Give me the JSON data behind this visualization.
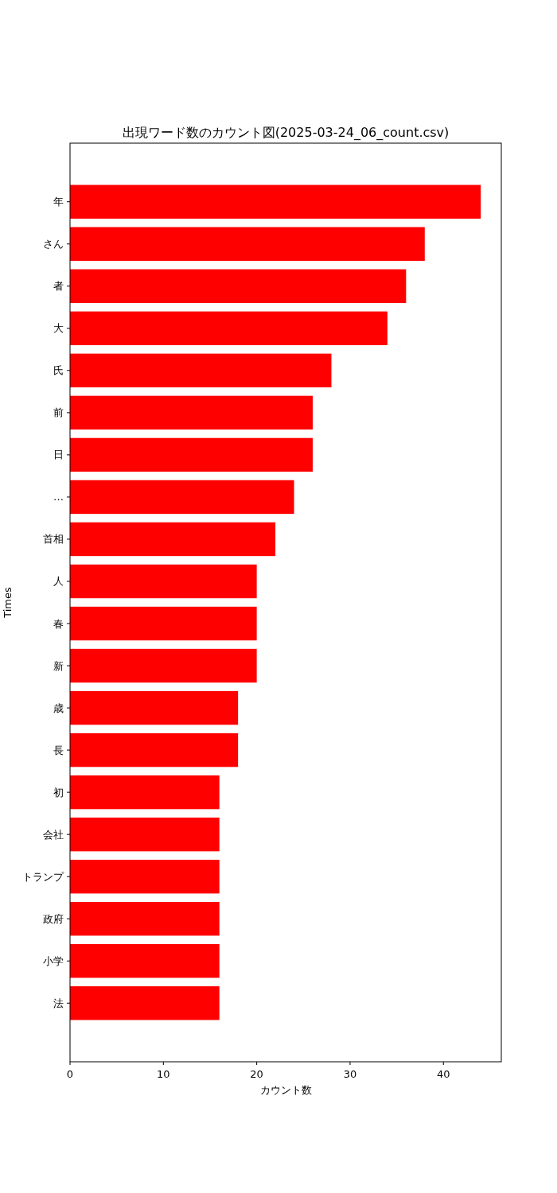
{
  "chart_data": {
    "type": "bar",
    "orientation": "horizontal",
    "title": "出現ワード数のカウント図(2025-03-24_06_count.csv)",
    "xlabel": "カウント数",
    "ylabel": "Times",
    "categories": [
      "年",
      "さん",
      "者",
      "大",
      "氏",
      "前",
      "日",
      "…",
      "首相",
      "人",
      "春",
      "新",
      "歳",
      "長",
      "初",
      "会社",
      "トランプ",
      "政府",
      "小学",
      "法"
    ],
    "values": [
      44,
      38,
      36,
      34,
      28,
      26,
      26,
      24,
      22,
      20,
      20,
      20,
      18,
      18,
      16,
      16,
      16,
      16,
      16,
      16
    ],
    "color": "#ff0000",
    "xlim": [
      0,
      46.2
    ],
    "xticks": [
      0,
      10,
      20,
      30,
      40
    ],
    "grid": false
  }
}
